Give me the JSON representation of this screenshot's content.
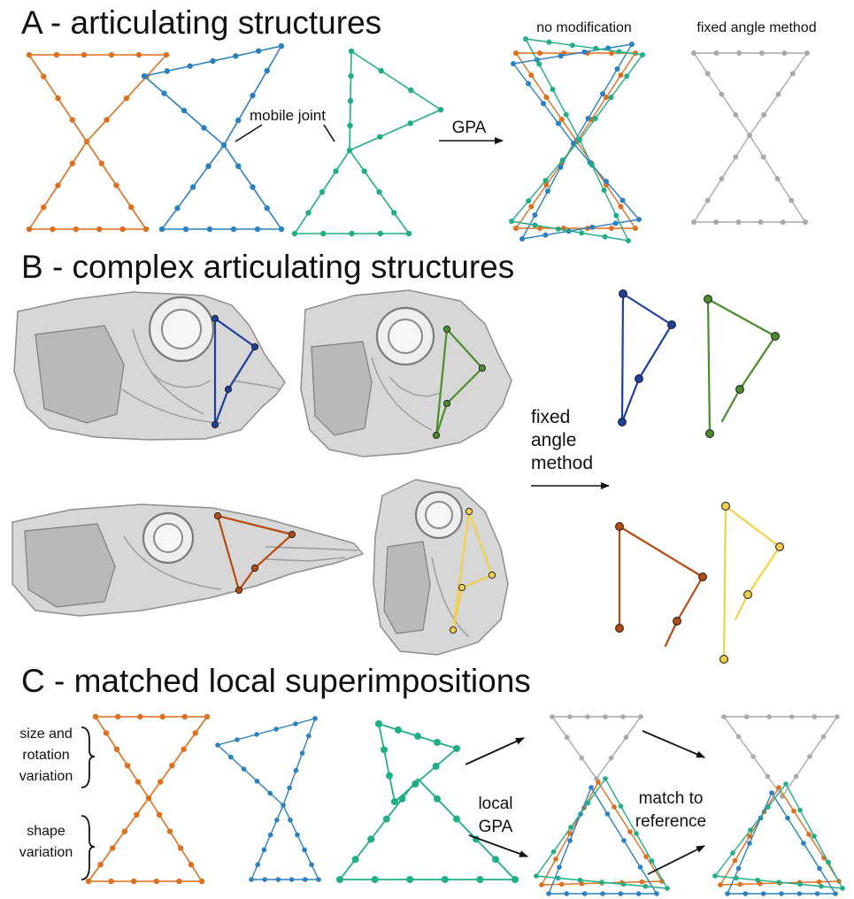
{
  "figure": {
    "panel_a": {
      "title": "A - articulating structures",
      "mobile_joint_label": "mobile joint",
      "gpa_label": "GPA",
      "no_modification_label": "no modification",
      "fixed_angle_label": "fixed angle method"
    },
    "panel_b": {
      "title": "B - complex articulating structures",
      "method_line1": "fixed",
      "method_line2": "angle",
      "method_line3": "method"
    },
    "panel_c": {
      "title": "C - matched local superimpositions",
      "size_line1": "size and",
      "size_line2": "rotation",
      "size_line3": "variation",
      "shape_line1": "shape",
      "shape_line2": "variation",
      "local_line1": "local",
      "local_line2": "GPA",
      "match_line1": "match to",
      "match_line2": "reference"
    }
  },
  "colors": {
    "orange": "#de6f1d",
    "blue": "#2a80c0",
    "teal": "#1fae86",
    "gray": "#a9a9a9",
    "navy": "#1f3f9e",
    "green": "#4a8d2a",
    "rust": "#b94b10",
    "yellow": "#f2d149",
    "text": "#111111"
  }
}
